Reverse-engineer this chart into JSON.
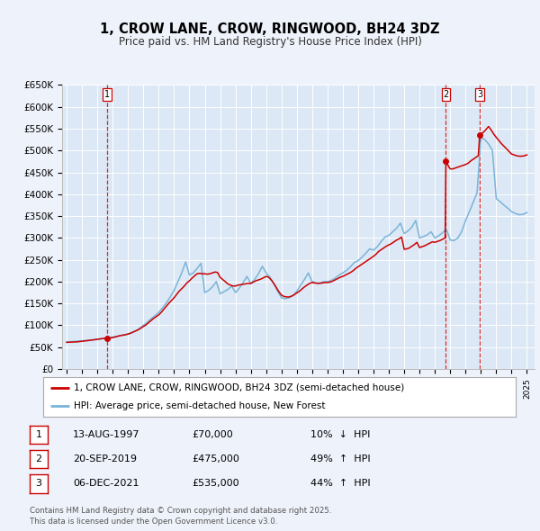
{
  "title": "1, CROW LANE, CROW, RINGWOOD, BH24 3DZ",
  "subtitle": "Price paid vs. HM Land Registry's House Price Index (HPI)",
  "title_fontsize": 10.5,
  "subtitle_fontsize": 8.5,
  "bg_color": "#eef2fa",
  "plot_bg_color": "#dce8f5",
  "grid_color": "#ffffff",
  "red_line_color": "#cc0000",
  "blue_line_color": "#7ab4d8",
  "sale_marker_color": "#cc0000",
  "vline_color": "#cc0000",
  "ylim": [
    0,
    650000
  ],
  "ytick_labels": [
    "£0",
    "£50K",
    "£100K",
    "£150K",
    "£200K",
    "£250K",
    "£300K",
    "£350K",
    "£400K",
    "£450K",
    "£500K",
    "£550K",
    "£600K",
    "£650K"
  ],
  "ytick_values": [
    0,
    50000,
    100000,
    150000,
    200000,
    250000,
    300000,
    350000,
    400000,
    450000,
    500000,
    550000,
    600000,
    650000
  ],
  "xlim_start": 1994.7,
  "xlim_end": 2025.5,
  "xtick_years": [
    1995,
    1996,
    1997,
    1998,
    1999,
    2000,
    2001,
    2002,
    2003,
    2004,
    2005,
    2006,
    2007,
    2008,
    2009,
    2010,
    2011,
    2012,
    2013,
    2014,
    2015,
    2016,
    2017,
    2018,
    2019,
    2020,
    2021,
    2022,
    2023,
    2024,
    2025
  ],
  "sales": [
    {
      "num": 1,
      "date": "13-AUG-1997",
      "year": 1997.62,
      "price": 70000,
      "pct": "10%",
      "dir": "↓"
    },
    {
      "num": 2,
      "date": "20-SEP-2019",
      "year": 2019.72,
      "price": 475000,
      "pct": "49%",
      "dir": "↑"
    },
    {
      "num": 3,
      "date": "06-DEC-2021",
      "year": 2021.92,
      "price": 535000,
      "pct": "44%",
      "dir": "↑"
    }
  ],
  "legend_label_red": "1, CROW LANE, CROW, RINGWOOD, BH24 3DZ (semi-detached house)",
  "legend_label_blue": "HPI: Average price, semi-detached house, New Forest",
  "footer_text": "Contains HM Land Registry data © Crown copyright and database right 2025.\nThis data is licensed under the Open Government Licence v3.0.",
  "hpi_x": [
    1995.0,
    1995.25,
    1995.5,
    1995.75,
    1996.0,
    1996.25,
    1996.5,
    1996.75,
    1997.0,
    1997.25,
    1997.5,
    1997.75,
    1998.0,
    1998.25,
    1998.5,
    1998.75,
    1999.0,
    1999.25,
    1999.5,
    1999.75,
    2000.0,
    2000.25,
    2000.5,
    2000.75,
    2001.0,
    2001.25,
    2001.5,
    2001.75,
    2002.0,
    2002.25,
    2002.5,
    2002.75,
    2003.0,
    2003.25,
    2003.5,
    2003.75,
    2004.0,
    2004.25,
    2004.5,
    2004.75,
    2005.0,
    2005.25,
    2005.5,
    2005.75,
    2006.0,
    2006.25,
    2006.5,
    2006.75,
    2007.0,
    2007.25,
    2007.5,
    2007.75,
    2008.0,
    2008.25,
    2008.5,
    2008.75,
    2009.0,
    2009.25,
    2009.5,
    2009.75,
    2010.0,
    2010.25,
    2010.5,
    2010.75,
    2011.0,
    2011.25,
    2011.5,
    2011.75,
    2012.0,
    2012.25,
    2012.5,
    2012.75,
    2013.0,
    2013.25,
    2013.5,
    2013.75,
    2014.0,
    2014.25,
    2014.5,
    2014.75,
    2015.0,
    2015.25,
    2015.5,
    2015.75,
    2016.0,
    2016.25,
    2016.5,
    2016.75,
    2017.0,
    2017.25,
    2017.5,
    2017.75,
    2018.0,
    2018.25,
    2018.5,
    2018.75,
    2019.0,
    2019.25,
    2019.5,
    2019.75,
    2020.0,
    2020.25,
    2020.5,
    2020.75,
    2021.0,
    2021.25,
    2021.5,
    2021.75,
    2022.0,
    2022.25,
    2022.5,
    2022.75,
    2023.0,
    2023.25,
    2023.5,
    2023.75,
    2024.0,
    2024.25,
    2024.5,
    2024.75,
    2025.0
  ],
  "hpi_y": [
    62000,
    62600,
    63200,
    64000,
    64500,
    65300,
    66200,
    67100,
    68000,
    69200,
    70400,
    71800,
    73200,
    74800,
    76600,
    78400,
    80500,
    83500,
    87500,
    93000,
    100000,
    107000,
    115000,
    122000,
    130000,
    140000,
    152000,
    165000,
    180000,
    200000,
    220000,
    245000,
    215000,
    220000,
    230000,
    242000,
    175000,
    180000,
    188000,
    200000,
    172000,
    177000,
    182000,
    190000,
    175000,
    185000,
    198000,
    212000,
    195000,
    205000,
    218000,
    235000,
    220000,
    210000,
    195000,
    178000,
    163000,
    161000,
    163000,
    168000,
    178000,
    192000,
    205000,
    220000,
    200000,
    197000,
    197000,
    200000,
    200000,
    203000,
    208000,
    215000,
    220000,
    226000,
    234000,
    244000,
    248000,
    256000,
    265000,
    275000,
    272000,
    280000,
    292000,
    302000,
    306000,
    314000,
    322000,
    334000,
    310000,
    316000,
    325000,
    340000,
    300000,
    303000,
    307000,
    314000,
    300000,
    305000,
    312000,
    320000,
    295000,
    294000,
    300000,
    315000,
    340000,
    360000,
    382000,
    403000,
    530000,
    525000,
    515000,
    500000,
    390000,
    383000,
    375000,
    368000,
    360000,
    356000,
    353000,
    354000,
    358000
  ],
  "red_x": [
    1995.0,
    1995.08,
    1995.17,
    1995.25,
    1995.33,
    1995.42,
    1995.5,
    1995.58,
    1995.67,
    1995.75,
    1995.83,
    1995.92,
    1996.0,
    1996.08,
    1996.17,
    1996.25,
    1996.33,
    1996.42,
    1996.5,
    1996.58,
    1996.67,
    1996.75,
    1996.83,
    1996.92,
    1997.0,
    1997.08,
    1997.17,
    1997.25,
    1997.33,
    1997.42,
    1997.5,
    1997.58,
    1997.62,
    1997.67,
    1997.75,
    1997.83,
    1997.92,
    1998.0,
    1998.17,
    1998.33,
    1998.5,
    1998.67,
    1998.83,
    1999.0,
    1999.17,
    1999.33,
    1999.5,
    1999.67,
    1999.83,
    2000.0,
    2000.17,
    2000.33,
    2000.5,
    2000.67,
    2000.83,
    2001.0,
    2001.17,
    2001.33,
    2001.5,
    2001.67,
    2001.83,
    2002.0,
    2002.17,
    2002.33,
    2002.5,
    2002.67,
    2002.83,
    2003.0,
    2003.17,
    2003.33,
    2003.5,
    2003.67,
    2003.83,
    2004.0,
    2004.17,
    2004.33,
    2004.5,
    2004.67,
    2004.83,
    2005.0,
    2005.17,
    2005.33,
    2005.5,
    2005.67,
    2005.83,
    2006.0,
    2006.17,
    2006.33,
    2006.5,
    2006.67,
    2006.83,
    2007.0,
    2007.17,
    2007.33,
    2007.5,
    2007.67,
    2007.83,
    2008.0,
    2008.17,
    2008.33,
    2008.5,
    2008.67,
    2008.83,
    2009.0,
    2009.17,
    2009.33,
    2009.5,
    2009.67,
    2009.83,
    2010.0,
    2010.17,
    2010.33,
    2010.5,
    2010.67,
    2010.83,
    2011.0,
    2011.17,
    2011.33,
    2011.5,
    2011.67,
    2011.83,
    2012.0,
    2012.17,
    2012.33,
    2012.5,
    2012.67,
    2012.83,
    2013.0,
    2013.17,
    2013.33,
    2013.5,
    2013.67,
    2013.83,
    2014.0,
    2014.17,
    2014.33,
    2014.5,
    2014.67,
    2014.83,
    2015.0,
    2015.17,
    2015.33,
    2015.5,
    2015.67,
    2015.83,
    2016.0,
    2016.17,
    2016.33,
    2016.5,
    2016.67,
    2016.83,
    2017.0,
    2017.17,
    2017.33,
    2017.5,
    2017.67,
    2017.83,
    2018.0,
    2018.17,
    2018.33,
    2018.5,
    2018.67,
    2018.83,
    2019.0,
    2019.17,
    2019.33,
    2019.5,
    2019.67,
    2019.72,
    2019.83,
    2019.92,
    2020.0,
    2020.17,
    2020.33,
    2020.5,
    2020.67,
    2020.83,
    2021.0,
    2021.17,
    2021.33,
    2021.5,
    2021.67,
    2021.83,
    2021.92,
    2022.0,
    2022.17,
    2022.33,
    2022.5,
    2022.67,
    2022.83,
    2023.0,
    2023.17,
    2023.33,
    2023.5,
    2023.67,
    2023.83,
    2024.0,
    2024.17,
    2024.33,
    2024.5,
    2024.67,
    2024.83,
    2025.0
  ],
  "red_y": [
    61000,
    61200,
    61400,
    61600,
    61700,
    61800,
    61900,
    62000,
    62200,
    62500,
    62700,
    63000,
    63300,
    63700,
    64100,
    64500,
    64900,
    65300,
    65700,
    66100,
    66500,
    66900,
    67300,
    67700,
    68000,
    68500,
    69000,
    69300,
    69700,
    70100,
    70400,
    70200,
    70000,
    70200,
    70500,
    71000,
    71500,
    72000,
    73500,
    75000,
    76500,
    77500,
    78500,
    80000,
    82000,
    84500,
    87000,
    90000,
    93500,
    97500,
    101000,
    106000,
    111000,
    116000,
    120000,
    124000,
    130000,
    137000,
    144000,
    151000,
    157000,
    163000,
    171000,
    178000,
    184000,
    190000,
    197000,
    202000,
    208000,
    213000,
    218000,
    219000,
    218000,
    218000,
    217000,
    218000,
    220000,
    222000,
    221000,
    210000,
    205000,
    200000,
    195000,
    192000,
    190000,
    190000,
    192000,
    193000,
    194000,
    195000,
    196000,
    196000,
    199000,
    202000,
    204000,
    206000,
    209000,
    212000,
    210000,
    204000,
    196000,
    186000,
    177000,
    169000,
    166000,
    165000,
    165000,
    167000,
    170000,
    174000,
    178000,
    183000,
    188000,
    192000,
    196000,
    198000,
    197000,
    196000,
    196000,
    197000,
    198000,
    198000,
    199000,
    201000,
    204000,
    207000,
    210000,
    212000,
    215000,
    218000,
    221000,
    225000,
    230000,
    234000,
    238000,
    242000,
    246000,
    250000,
    254000,
    258000,
    263000,
    269000,
    273000,
    277000,
    281000,
    284000,
    287000,
    291000,
    295000,
    298000,
    302000,
    274000,
    275000,
    277000,
    281000,
    285000,
    290000,
    278000,
    280000,
    282000,
    285000,
    288000,
    291000,
    290000,
    292000,
    294000,
    297000,
    300000,
    475000,
    468000,
    462000,
    458000,
    458000,
    460000,
    462000,
    464000,
    466000,
    468000,
    471000,
    476000,
    480000,
    484000,
    488000,
    535000,
    538000,
    542000,
    548000,
    555000,
    547000,
    538000,
    530000,
    523000,
    516000,
    510000,
    504000,
    498000,
    492000,
    490000,
    488000,
    487000,
    487000,
    488000,
    490000
  ]
}
